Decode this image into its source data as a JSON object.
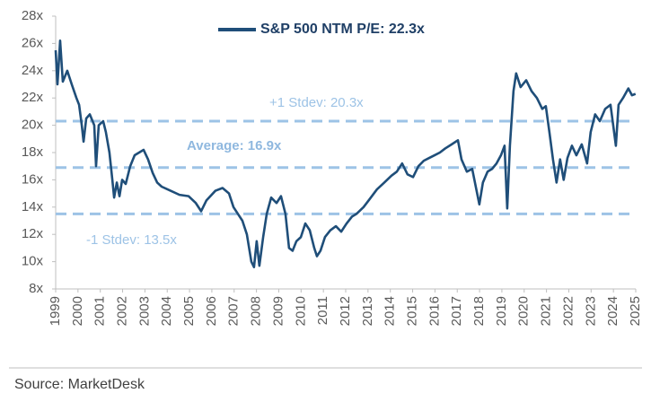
{
  "chart_data": {
    "type": "line",
    "source": "Source: MarketDesk",
    "x": [
      1999.0,
      1999.08,
      1999.2,
      1999.32,
      1999.52,
      1999.72,
      1999.93,
      2000.05,
      2000.17,
      2000.25,
      2000.37,
      2000.53,
      2000.73,
      2000.81,
      2000.93,
      2001.13,
      2001.25,
      2001.41,
      2001.54,
      2001.62,
      2001.74,
      2001.86,
      2001.98,
      2002.14,
      2002.34,
      2002.54,
      2002.74,
      2002.94,
      2003.14,
      2003.35,
      2003.55,
      2003.75,
      2004.15,
      2004.55,
      2004.96,
      2005.28,
      2005.52,
      2005.76,
      2006.16,
      2006.48,
      2006.77,
      2006.97,
      2007.17,
      2007.37,
      2007.57,
      2007.77,
      2007.89,
      2008.01,
      2008.13,
      2008.3,
      2008.46,
      2008.66,
      2008.9,
      2009.1,
      2009.3,
      2009.46,
      2009.62,
      2009.79,
      2009.99,
      2010.19,
      2010.39,
      2010.59,
      2010.71,
      2010.87,
      2011.07,
      2011.31,
      2011.56,
      2011.8,
      2012.04,
      2012.28,
      2012.48,
      2012.8,
      2013.08,
      2013.4,
      2013.73,
      2014.05,
      2014.29,
      2014.53,
      2014.77,
      2015.02,
      2015.26,
      2015.5,
      2015.74,
      2015.98,
      2016.22,
      2016.46,
      2016.75,
      2017.03,
      2017.19,
      2017.43,
      2017.67,
      2017.83,
      2017.99,
      2018.15,
      2018.36,
      2018.56,
      2018.76,
      2018.96,
      2019.12,
      2019.24,
      2019.36,
      2019.52,
      2019.64,
      2019.84,
      2020.09,
      2020.33,
      2020.57,
      2020.81,
      2020.97,
      2021.13,
      2021.29,
      2021.45,
      2021.61,
      2021.77,
      2021.94,
      2022.14,
      2022.34,
      2022.58,
      2022.82,
      2022.98,
      2023.18,
      2023.39,
      2023.63,
      2023.87,
      2024.11,
      2024.23,
      2024.43,
      2024.67,
      2024.83,
      2024.99
    ],
    "series": [
      {
        "name": "S&P 500 NTM P/E: 22.3x",
        "color": "#1f4e79",
        "values": [
          25.5,
          23,
          26.2,
          23.2,
          24,
          23,
          22,
          21.5,
          20,
          18.8,
          20.5,
          20.8,
          20,
          17,
          20,
          20.3,
          19.5,
          18,
          16,
          14.7,
          15.8,
          14.8,
          16,
          15.7,
          17,
          17.8,
          18,
          18.2,
          17.5,
          16.5,
          15.8,
          15.5,
          15.2,
          14.9,
          14.8,
          14.3,
          13.7,
          14.5,
          15.2,
          15.4,
          15,
          14,
          13.5,
          13,
          12,
          10,
          9.6,
          11.5,
          9.7,
          11.8,
          13.5,
          14.7,
          14.3,
          14.8,
          13.5,
          11,
          10.8,
          11.5,
          11.8,
          12.8,
          12.3,
          11,
          10.4,
          10.8,
          11.8,
          12.3,
          12.6,
          12.2,
          12.8,
          13.3,
          13.5,
          14,
          14.6,
          15.3,
          15.8,
          16.3,
          16.6,
          17.2,
          16.4,
          16.2,
          17,
          17.4,
          17.6,
          17.8,
          18,
          18.3,
          18.6,
          18.9,
          17.5,
          16.6,
          16.8,
          15.5,
          14.2,
          15.8,
          16.6,
          16.8,
          17.2,
          17.8,
          18.5,
          13.9,
          18.5,
          22.5,
          23.8,
          22.8,
          23.3,
          22.5,
          22,
          21.2,
          21.4,
          19.5,
          17.5,
          15.8,
          17.5,
          16,
          17.6,
          18.5,
          17.8,
          18.6,
          17.2,
          19.5,
          20.8,
          20.3,
          21.2,
          21.5,
          18.5,
          21.5,
          22,
          22.7,
          22.2,
          22.3
        ]
      }
    ],
    "reference_lines": [
      {
        "value": 20.3,
        "label": "+1 Stdev: 20.3x",
        "color": "#9dc3e6"
      },
      {
        "value": 16.9,
        "label": "Average: 16.9x",
        "color": "#9dc3e6"
      },
      {
        "value": 13.5,
        "label": "-1 Stdev: 13.5x",
        "color": "#9dc3e6"
      }
    ],
    "xlim": [
      1999,
      2025
    ],
    "xticks": [
      1999,
      2000,
      2001,
      2002,
      2003,
      2004,
      2005,
      2006,
      2007,
      2008,
      2009,
      2010,
      2011,
      2012,
      2013,
      2014,
      2015,
      2016,
      2017,
      2018,
      2019,
      2020,
      2021,
      2022,
      2023,
      2024,
      2025
    ],
    "ylim": [
      8,
      28
    ],
    "yticks": [
      {
        "value": 8,
        "label": "8x"
      },
      {
        "value": 10,
        "label": "10x"
      },
      {
        "value": 12,
        "label": "12x"
      },
      {
        "value": 14,
        "label": "14x"
      },
      {
        "value": 16,
        "label": "16x"
      },
      {
        "value": 18,
        "label": "18x"
      },
      {
        "value": 20,
        "label": "20x"
      },
      {
        "value": 22,
        "label": "22x"
      },
      {
        "value": 24,
        "label": "24x"
      },
      {
        "value": 26,
        "label": "26x"
      },
      {
        "value": 28,
        "label": "28x"
      }
    ],
    "grid": false,
    "legend": "top"
  }
}
